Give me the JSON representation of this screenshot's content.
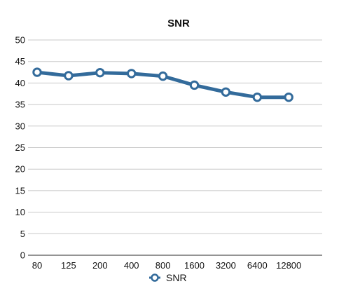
{
  "chart_data": {
    "type": "line",
    "title": "SNR",
    "categories": [
      "80",
      "125",
      "200",
      "400",
      "800",
      "1600",
      "3200",
      "6400",
      "12800"
    ],
    "series": [
      {
        "name": "SNR",
        "values": [
          42.5,
          41.7,
          42.4,
          42.2,
          41.6,
          39.5,
          37.9,
          36.7,
          36.7
        ]
      }
    ],
    "yticks": [
      "0",
      "5",
      "10",
      "15",
      "20",
      "25",
      "30",
      "35",
      "40",
      "45",
      "50"
    ],
    "ylim": [
      0,
      50
    ],
    "grid": true,
    "legend": "bottom",
    "colors": {
      "series": "#336b9b",
      "grid": "#c8c8c8",
      "axis": "#555555",
      "marker_fill": "#ffffff"
    }
  }
}
